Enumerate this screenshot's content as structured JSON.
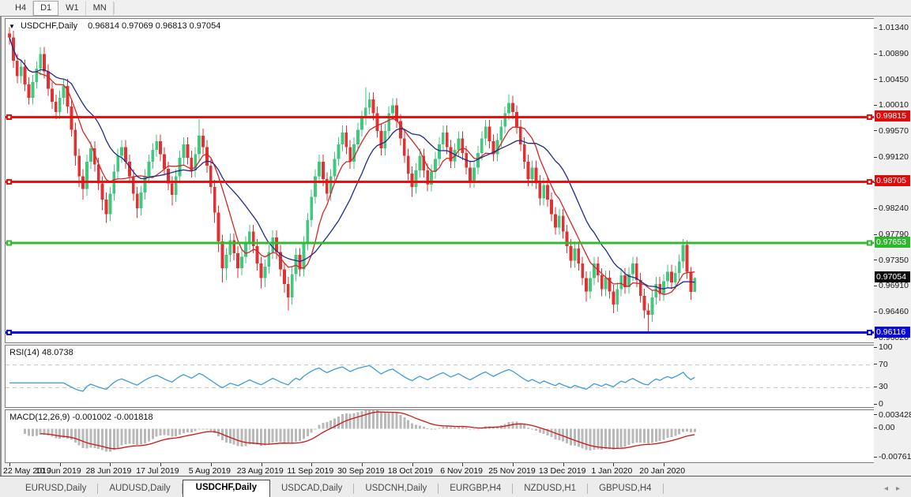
{
  "toolbar": {
    "timeframes": [
      {
        "label": "H4",
        "active": false
      },
      {
        "label": "D1",
        "active": true
      },
      {
        "label": "W1",
        "active": false
      },
      {
        "label": "MN",
        "active": false
      }
    ]
  },
  "chart_header": {
    "symbol_label": "USDCHF,Daily",
    "quote_line": "0.96814 0.97069 0.96813 0.97054"
  },
  "indicators": {
    "rsi_label": "RSI(14) 48.0738",
    "macd_label": "MACD(12,26,9) -0.001002 -0.001818"
  },
  "price_axis": {
    "ticks": [
      "1.01340",
      "1.00890",
      "1.00450",
      "1.00010",
      "0.99570",
      "0.99120",
      "0.98680",
      "0.98240",
      "0.97790",
      "0.97350",
      "0.96910",
      "0.96460",
      "0.96020"
    ],
    "badges": [
      {
        "value": "0.99815",
        "bg": "#de0b0b",
        "name": "resistance-1"
      },
      {
        "value": "0.98705",
        "bg": "#de0b0b",
        "name": "resistance-2"
      },
      {
        "value": "0.97653",
        "bg": "#2eb62e",
        "name": "support-green"
      },
      {
        "value": "0.97054",
        "bg": "#0a0a0a",
        "name": "current-price"
      },
      {
        "value": "0.96116",
        "bg": "#0b0bd0",
        "name": "support-blue"
      }
    ]
  },
  "rsi_axis": [
    "100",
    "70",
    "30",
    "0"
  ],
  "macd_axis": [
    "0.003428",
    "0.00",
    "-0.007615"
  ],
  "bottom_tabs": {
    "tabs": [
      {
        "label": "EURUSD,Daily",
        "active": false
      },
      {
        "label": "AUDUSD,Daily",
        "active": false
      },
      {
        "label": "USDCHF,Daily",
        "active": true
      },
      {
        "label": "USDCAD,Daily",
        "active": false
      },
      {
        "label": "USDCNH,Daily",
        "active": false
      },
      {
        "label": "EURGBP,H4",
        "active": false
      },
      {
        "label": "NZDUSD,H1",
        "active": false
      },
      {
        "label": "GBPUSD,H4",
        "active": false
      }
    ],
    "scroll_left": "◂",
    "scroll_right": "▸"
  },
  "chart_data": {
    "type": "candlestick",
    "symbol": "USDCHF",
    "timeframe": "Daily",
    "last_quote": {
      "open": 0.96814,
      "high": 0.97069,
      "low": 0.96813,
      "close": 0.97054
    },
    "price_range": [
      0.9599,
      1.0146
    ],
    "x_labels": [
      "22 May 2019",
      "10 Jun 2019",
      "28 Jun 2019",
      "17 Jul 2019",
      "5 Aug 2019",
      "23 Aug 2019",
      "11 Sep 2019",
      "30 Sep 2019",
      "18 Oct 2019",
      "6 Nov 2019",
      "25 Nov 2019",
      "13 Dec 2019",
      "1 Jan 2020",
      "20 Jan 2020"
    ],
    "label_every": 13,
    "colors": {
      "up": "#3fc97d",
      "down": "#e03232",
      "ma_fast": "#d42626",
      "ma_slow": "#1f2a8e",
      "hline_red": "#ef0d0d",
      "hline_green": "#2fba2f",
      "hline_blue": "#0d0de0",
      "rsi_line": "#3f9bdc",
      "rsi_levels": "#c4c4c4",
      "macd_hist": "#b9b9b9",
      "macd_signal": "#d01414"
    },
    "hlines": [
      {
        "price": 0.99815,
        "color": "#ef0d0d",
        "width": 3
      },
      {
        "price": 0.98705,
        "color": "#ef0d0d",
        "width": 3
      },
      {
        "price": 0.97653,
        "color": "#2fba2f",
        "width": 3
      },
      {
        "price": 0.96116,
        "color": "#0d0de0",
        "width": 3
      }
    ],
    "ma": [
      {
        "type": "sma",
        "period": 8,
        "color": "#d42626"
      },
      {
        "type": "sma",
        "period": 17,
        "color": "#1f2a8e"
      }
    ],
    "rsi": {
      "period": 14,
      "levels": [
        70,
        30
      ],
      "range": [
        0,
        100
      ],
      "last": 48.0738
    },
    "macd": {
      "fast": 12,
      "slow": 26,
      "signal": 9,
      "plot_range": [
        -0.0082,
        0.0042
      ],
      "last_main": -0.001002,
      "last_signal": -0.001818
    },
    "candles": [
      [
        1.0125,
        1.0136,
        1.0106,
        1.0118
      ],
      [
        1.0118,
        1.013,
        1.0066,
        1.0078
      ],
      [
        1.0078,
        1.009,
        1.004,
        1.0052
      ],
      [
        1.0052,
        1.008,
        1.004,
        1.0068
      ],
      [
        1.0068,
        1.008,
        1.0026,
        1.0038
      ],
      [
        1.0038,
        1.005,
        1.0003,
        1.0015
      ],
      [
        1.0015,
        1.0054,
        1.0003,
        1.0042
      ],
      [
        1.0042,
        1.0077,
        1.003,
        1.0065
      ],
      [
        1.0065,
        1.0102,
        1.0053,
        1.009
      ],
      [
        1.009,
        1.0102,
        1.0048,
        1.006
      ],
      [
        1.006,
        1.0072,
        1.0018,
        1.003
      ],
      [
        1.003,
        1.0042,
        0.9996,
        1.0008
      ],
      [
        1.0008,
        1.002,
        0.9978,
        0.999
      ],
      [
        0.999,
        1.0027,
        0.9978,
        1.0015
      ],
      [
        1.0015,
        1.0047,
        1.0003,
        1.0035
      ],
      [
        1.0035,
        1.0047,
        0.9988,
        1.0
      ],
      [
        1.0,
        1.0012,
        0.9948,
        0.996
      ],
      [
        0.996,
        0.9972,
        0.9898,
        0.9915
      ],
      [
        0.9915,
        0.9927,
        0.9862,
        0.988
      ],
      [
        0.988,
        0.9892,
        0.984,
        0.9858
      ],
      [
        0.9858,
        0.9917,
        0.9846,
        0.9905
      ],
      [
        0.9905,
        0.994,
        0.9893,
        0.9928
      ],
      [
        0.9928,
        0.994,
        0.9888,
        0.99
      ],
      [
        0.99,
        0.9912,
        0.9856,
        0.9868
      ],
      [
        0.9868,
        0.988,
        0.9822,
        0.984
      ],
      [
        0.984,
        0.9852,
        0.98,
        0.9815
      ],
      [
        0.9815,
        0.9862,
        0.9803,
        0.985
      ],
      [
        0.985,
        0.99,
        0.9838,
        0.9888
      ],
      [
        0.9888,
        0.9927,
        0.9876,
        0.9915
      ],
      [
        0.9915,
        0.9942,
        0.9903,
        0.993
      ],
      [
        0.993,
        0.9942,
        0.9893,
        0.9905
      ],
      [
        0.9905,
        0.9917,
        0.9868,
        0.988
      ],
      [
        0.988,
        0.9892,
        0.9838,
        0.985
      ],
      [
        0.985,
        0.9862,
        0.9808,
        0.9825
      ],
      [
        0.9825,
        0.9864,
        0.9813,
        0.9852
      ],
      [
        0.9852,
        0.9892,
        0.984,
        0.988
      ],
      [
        0.988,
        0.9917,
        0.9868,
        0.9905
      ],
      [
        0.9905,
        0.9937,
        0.9893,
        0.9925
      ],
      [
        0.9925,
        0.9952,
        0.9913,
        0.994
      ],
      [
        0.994,
        0.9952,
        0.9906,
        0.9918
      ],
      [
        0.9918,
        0.993,
        0.9881,
        0.9893
      ],
      [
        0.9893,
        0.9905,
        0.9856,
        0.9868
      ],
      [
        0.9868,
        0.988,
        0.983,
        0.9848
      ],
      [
        0.9848,
        0.9892,
        0.9836,
        0.988
      ],
      [
        0.988,
        0.9924,
        0.9868,
        0.9912
      ],
      [
        0.9912,
        0.9947,
        0.99,
        0.9935
      ],
      [
        0.9935,
        0.9947,
        0.99,
        0.9912
      ],
      [
        0.9912,
        0.9924,
        0.9878,
        0.989
      ],
      [
        0.989,
        0.993,
        0.9878,
        0.9918
      ],
      [
        0.9918,
        0.9978,
        0.9906,
        0.995
      ],
      [
        0.995,
        0.9962,
        0.9918,
        0.993
      ],
      [
        0.993,
        0.9942,
        0.9886,
        0.9898
      ],
      [
        0.9898,
        0.991,
        0.985,
        0.9862
      ],
      [
        0.9862,
        0.9874,
        0.98,
        0.9818
      ],
      [
        0.9818,
        0.983,
        0.975,
        0.9768
      ],
      [
        0.9768,
        0.978,
        0.9698,
        0.9722
      ],
      [
        0.9722,
        0.9757,
        0.9702,
        0.9745
      ],
      [
        0.9745,
        0.9782,
        0.9733,
        0.977
      ],
      [
        0.977,
        0.9782,
        0.9736,
        0.9748
      ],
      [
        0.9748,
        0.976,
        0.9705,
        0.9722
      ],
      [
        0.9722,
        0.9754,
        0.971,
        0.9742
      ],
      [
        0.9742,
        0.9777,
        0.973,
        0.9765
      ],
      [
        0.9765,
        0.9797,
        0.9753,
        0.9785
      ],
      [
        0.9785,
        0.9797,
        0.9748,
        0.976
      ],
      [
        0.976,
        0.9772,
        0.9718,
        0.973
      ],
      [
        0.973,
        0.9742,
        0.9688,
        0.9705
      ],
      [
        0.9705,
        0.9737,
        0.969,
        0.9725
      ],
      [
        0.9725,
        0.9762,
        0.9713,
        0.975
      ],
      [
        0.975,
        0.9787,
        0.9738,
        0.9775
      ],
      [
        0.9775,
        0.9787,
        0.9738,
        0.975
      ],
      [
        0.975,
        0.9762,
        0.9708,
        0.972
      ],
      [
        0.972,
        0.9732,
        0.968,
        0.9695
      ],
      [
        0.9695,
        0.9707,
        0.965,
        0.9672
      ],
      [
        0.9672,
        0.9724,
        0.966,
        0.9712
      ],
      [
        0.9712,
        0.9757,
        0.97,
        0.9745
      ],
      [
        0.9745,
        0.9757,
        0.9708,
        0.972
      ],
      [
        0.972,
        0.9777,
        0.9708,
        0.9765
      ],
      [
        0.9765,
        0.9817,
        0.9753,
        0.9805
      ],
      [
        0.9805,
        0.9857,
        0.9793,
        0.9845
      ],
      [
        0.9845,
        0.9892,
        0.9833,
        0.988
      ],
      [
        0.988,
        0.9917,
        0.9868,
        0.9905
      ],
      [
        0.9905,
        0.9917,
        0.9863,
        0.9875
      ],
      [
        0.9875,
        0.9887,
        0.9838,
        0.985
      ],
      [
        0.985,
        0.9892,
        0.9838,
        0.988
      ],
      [
        0.988,
        0.9922,
        0.9868,
        0.991
      ],
      [
        0.991,
        0.9947,
        0.9898,
        0.9935
      ],
      [
        0.9935,
        0.9967,
        0.9923,
        0.9955
      ],
      [
        0.9955,
        0.9967,
        0.9918,
        0.993
      ],
      [
        0.993,
        0.9942,
        0.9893,
        0.9905
      ],
      [
        0.9905,
        0.9947,
        0.9893,
        0.9935
      ],
      [
        0.9935,
        0.9972,
        0.9923,
        0.996
      ],
      [
        0.996,
        0.9992,
        0.9948,
        0.998
      ],
      [
        0.998,
        1.0033,
        0.9968,
        0.9998
      ],
      [
        0.9998,
        1.0024,
        0.9986,
        1.0012
      ],
      [
        1.0012,
        1.0024,
        0.9976,
        0.9988
      ],
      [
        0.9988,
        1.0,
        0.9946,
        0.9958
      ],
      [
        0.9958,
        0.997,
        0.9916,
        0.9928
      ],
      [
        0.9928,
        0.997,
        0.9916,
        0.9958
      ],
      [
        0.9958,
        1.0,
        0.9946,
        0.9988
      ],
      [
        0.9988,
        1.0014,
        0.9976,
        1.0002
      ],
      [
        1.0002,
        1.0014,
        0.9963,
        0.9975
      ],
      [
        0.9975,
        0.9987,
        0.9933,
        0.9945
      ],
      [
        0.9945,
        0.9957,
        0.9903,
        0.9915
      ],
      [
        0.9915,
        0.9927,
        0.9873,
        0.9885
      ],
      [
        0.9885,
        0.9897,
        0.9845,
        0.9862
      ],
      [
        0.9862,
        0.9902,
        0.985,
        0.989
      ],
      [
        0.989,
        0.9927,
        0.9878,
        0.9915
      ],
      [
        0.9915,
        0.9927,
        0.9878,
        0.989
      ],
      [
        0.989,
        0.9902,
        0.9854,
        0.9866
      ],
      [
        0.9866,
        0.99,
        0.9854,
        0.9888
      ],
      [
        0.9888,
        0.9922,
        0.9876,
        0.991
      ],
      [
        0.991,
        0.9947,
        0.9898,
        0.9935
      ],
      [
        0.9935,
        0.9967,
        0.9923,
        0.9955
      ],
      [
        0.9955,
        0.9967,
        0.9918,
        0.993
      ],
      [
        0.993,
        0.9942,
        0.9894,
        0.9906
      ],
      [
        0.9906,
        0.9937,
        0.9894,
        0.9925
      ],
      [
        0.9925,
        0.9957,
        0.9913,
        0.9945
      ],
      [
        0.9945,
        0.9957,
        0.9908,
        0.992
      ],
      [
        0.992,
        0.9932,
        0.9883,
        0.9895
      ],
      [
        0.9895,
        0.9907,
        0.986,
        0.9872
      ],
      [
        0.9872,
        0.9907,
        0.986,
        0.9895
      ],
      [
        0.9895,
        0.9932,
        0.9883,
        0.992
      ],
      [
        0.992,
        0.9957,
        0.9908,
        0.9945
      ],
      [
        0.9945,
        0.9977,
        0.9933,
        0.9965
      ],
      [
        0.9965,
        0.9977,
        0.9928,
        0.994
      ],
      [
        0.994,
        0.9952,
        0.9906,
        0.9918
      ],
      [
        0.9918,
        0.9954,
        0.9906,
        0.9942
      ],
      [
        0.9942,
        0.9977,
        0.993,
        0.9965
      ],
      [
        0.9965,
        1.0,
        0.9953,
        0.9988
      ],
      [
        0.9988,
        1.0021,
        0.9976,
        1.0006
      ],
      [
        1.0006,
        1.0018,
        0.9978,
        0.999
      ],
      [
        0.999,
        1.0002,
        0.9953,
        0.9965
      ],
      [
        0.9965,
        0.9977,
        0.9923,
        0.9935
      ],
      [
        0.9935,
        0.9947,
        0.9893,
        0.9905
      ],
      [
        0.9905,
        0.9917,
        0.9863,
        0.9875
      ],
      [
        0.9875,
        0.9907,
        0.9863,
        0.9895
      ],
      [
        0.9895,
        0.9907,
        0.9858,
        0.987
      ],
      [
        0.987,
        0.9882,
        0.983,
        0.9842
      ],
      [
        0.9842,
        0.9877,
        0.983,
        0.9865
      ],
      [
        0.9865,
        0.9877,
        0.9828,
        0.984
      ],
      [
        0.984,
        0.9852,
        0.9803,
        0.9815
      ],
      [
        0.9815,
        0.9827,
        0.978,
        0.9792
      ],
      [
        0.9792,
        0.9824,
        0.978,
        0.9812
      ],
      [
        0.9812,
        0.9824,
        0.9773,
        0.9785
      ],
      [
        0.9785,
        0.9797,
        0.9748,
        0.976
      ],
      [
        0.976,
        0.9772,
        0.9723,
        0.9735
      ],
      [
        0.9735,
        0.9768,
        0.9723,
        0.9756
      ],
      [
        0.9756,
        0.9768,
        0.9718,
        0.973
      ],
      [
        0.973,
        0.9742,
        0.9693,
        0.9705
      ],
      [
        0.9705,
        0.9717,
        0.9665,
        0.9682
      ],
      [
        0.9682,
        0.9717,
        0.967,
        0.9705
      ],
      [
        0.9705,
        0.9742,
        0.9693,
        0.973
      ],
      [
        0.973,
        0.9742,
        0.9698,
        0.971
      ],
      [
        0.971,
        0.9722,
        0.9674,
        0.9686
      ],
      [
        0.9686,
        0.9718,
        0.9674,
        0.9706
      ],
      [
        0.9706,
        0.9718,
        0.967,
        0.9682
      ],
      [
        0.9682,
        0.9694,
        0.9645,
        0.966
      ],
      [
        0.966,
        0.9698,
        0.9648,
        0.9686
      ],
      [
        0.9686,
        0.9722,
        0.9674,
        0.971
      ],
      [
        0.971,
        0.9722,
        0.9678,
        0.969
      ],
      [
        0.969,
        0.9724,
        0.9678,
        0.9712
      ],
      [
        0.9712,
        0.9742,
        0.97,
        0.973
      ],
      [
        0.973,
        0.9742,
        0.969,
        0.9702
      ],
      [
        0.9702,
        0.9714,
        0.9663,
        0.9675
      ],
      [
        0.9675,
        0.9687,
        0.9636,
        0.965
      ],
      [
        0.965,
        0.9662,
        0.9613,
        0.9642
      ],
      [
        0.9642,
        0.9684,
        0.963,
        0.9672
      ],
      [
        0.9672,
        0.9707,
        0.966,
        0.9695
      ],
      [
        0.9695,
        0.9707,
        0.9666,
        0.9678
      ],
      [
        0.9678,
        0.9712,
        0.9666,
        0.97
      ],
      [
        0.97,
        0.9728,
        0.9688,
        0.9716
      ],
      [
        0.9716,
        0.9728,
        0.9686,
        0.9698
      ],
      [
        0.9698,
        0.9726,
        0.9686,
        0.9714
      ],
      [
        0.9714,
        0.9746,
        0.9702,
        0.9734
      ],
      [
        0.9734,
        0.9772,
        0.9722,
        0.9762
      ],
      [
        0.9762,
        0.977,
        0.9704,
        0.9716
      ],
      [
        0.9716,
        0.9724,
        0.9668,
        0.96814
      ],
      [
        0.96814,
        0.97069,
        0.96813,
        0.97054
      ]
    ]
  }
}
